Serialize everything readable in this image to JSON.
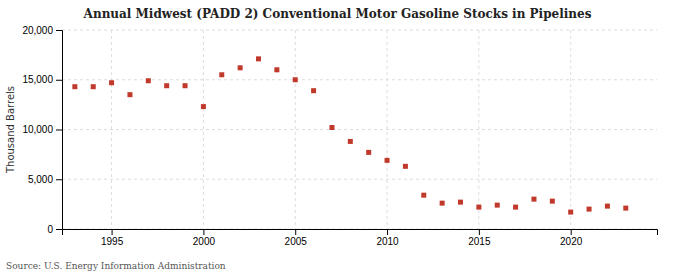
{
  "chart_data": {
    "type": "scatter",
    "title": "Annual Midwest (PADD 2) Conventional Motor Gasoline Stocks in Pipelines",
    "y_label": "Thousand Barrels",
    "source": "Source: U.S. Energy Information Administration",
    "color": "#c0392b",
    "marker": "square",
    "grid": true,
    "xlim": [
      1992.3,
      2024.7
    ],
    "xticks": [
      1995,
      2000,
      2005,
      2010,
      2015,
      2020
    ],
    "ylim": [
      0,
      20000
    ],
    "yticks": [
      0,
      {
        "value": 5000,
        "label": "5,000"
      },
      {
        "value": 10000,
        "label": "10,000"
      },
      {
        "value": 15000,
        "label": "15,000"
      },
      {
        "value": 20000,
        "label": "20,000"
      }
    ],
    "x": [
      1993,
      1994,
      1995,
      1996,
      1997,
      1998,
      1999,
      2000,
      2001,
      2002,
      2003,
      2004,
      2005,
      2006,
      2007,
      2008,
      2009,
      2010,
      2011,
      2012,
      2013,
      2014,
      2015,
      2016,
      2017,
      2018,
      2019,
      2020,
      2021,
      2022,
      2023
    ],
    "values": [
      14300,
      14300,
      14700,
      13500,
      14900,
      14400,
      14400,
      12300,
      15500,
      16200,
      17100,
      16000,
      15000,
      13900,
      10200,
      8800,
      7700,
      6900,
      6300,
      3400,
      2600,
      2700,
      2200,
      2400,
      2200,
      3000,
      2800,
      1700,
      2000,
      2300,
      2100
    ]
  }
}
